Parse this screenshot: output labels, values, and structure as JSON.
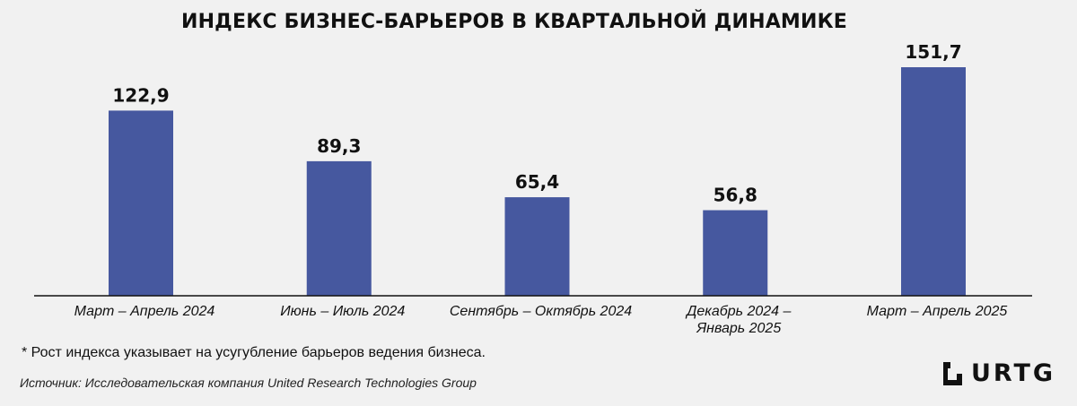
{
  "chart_data": {
    "type": "bar",
    "title": "ИНДЕКС БИЗНЕС-БАРЬЕРОВ В КВАРТАЛЬНОЙ ДИНАМИКЕ",
    "xlabel": "",
    "ylabel": "",
    "categories": [
      "Март – Апрель 2024",
      "Июнь – Июль 2024",
      "Сентябрь – Октябрь 2024",
      "Декабрь 2024 – Январь 2025",
      "Март – Апрель 2025"
    ],
    "category_lines": [
      [
        "Март – Апрель 2024"
      ],
      [
        "Июнь – Июль 2024"
      ],
      [
        "Сентябрь – Октябрь 2024"
      ],
      [
        "Декабрь 2024 –",
        "Январь 2025"
      ],
      [
        "Март – Апрель 2025"
      ]
    ],
    "values": [
      122.9,
      89.3,
      65.4,
      56.8,
      151.7
    ],
    "value_labels": [
      "122,9",
      "89,3",
      "65,4",
      "56,8",
      "151,7"
    ],
    "ylim": [
      0,
      151.7
    ],
    "grid": false,
    "legend": "none",
    "bar_color": "#46589f"
  },
  "footnote": "* Рост индекса указывает на усугубление барьеров ведения бизнеса.",
  "source": "Источник: Исследовательская компания United Research Technologies Group",
  "logo": {
    "text": "URTG",
    "icon": "urtg-logo-mark-icon"
  }
}
